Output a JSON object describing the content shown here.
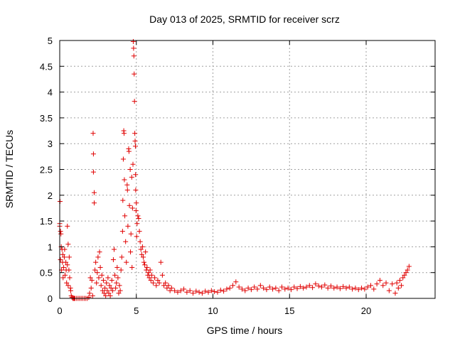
{
  "chart_data": {
    "type": "scatter",
    "title": "Day 013 of 2025, SRMTID for receiver scrz",
    "xlabel": "GPS time / hours",
    "ylabel": "SRMTID / TECUs",
    "xlim": [
      0,
      24.5
    ],
    "ylim": [
      0,
      5
    ],
    "grid": true,
    "marker": "+",
    "x_ticks": [
      "0",
      "5",
      "10",
      "15",
      "20"
    ],
    "y_ticks": [
      "0",
      "0.5",
      "1",
      "1.5",
      "2",
      "2.5",
      "3",
      "3.5",
      "4",
      "4.5",
      "5"
    ],
    "series": [
      {
        "name": "SRMTID",
        "color": "#e00000",
        "points": [
          [
            0.0,
            1.45
          ],
          [
            0.0,
            1.4
          ],
          [
            0.02,
            1.88
          ],
          [
            0.05,
            1.3
          ],
          [
            0.05,
            0.75
          ],
          [
            0.08,
            1.25
          ],
          [
            0.1,
            1.0
          ],
          [
            0.12,
            0.55
          ],
          [
            0.15,
            0.95
          ],
          [
            0.18,
            0.7
          ],
          [
            0.2,
            0.85
          ],
          [
            0.22,
            0.4
          ],
          [
            0.25,
            0.6
          ],
          [
            0.3,
            0.8
          ],
          [
            0.32,
            0.95
          ],
          [
            0.35,
            0.45
          ],
          [
            0.4,
            0.7
          ],
          [
            0.42,
            0.55
          ],
          [
            0.45,
            0.3
          ],
          [
            0.5,
            0.65
          ],
          [
            0.5,
            1.4
          ],
          [
            0.55,
            1.05
          ],
          [
            0.55,
            0.25
          ],
          [
            0.6,
            0.55
          ],
          [
            0.62,
            0.8
          ],
          [
            0.65,
            0.4
          ],
          [
            0.7,
            0.2
          ],
          [
            0.72,
            0.15
          ],
          [
            0.75,
            0.05
          ],
          [
            0.8,
            0.02
          ],
          [
            0.85,
            0.0
          ],
          [
            0.9,
            0.0
          ],
          [
            0.95,
            0.0
          ],
          [
            1.0,
            0.0
          ],
          [
            1.1,
            0.0
          ],
          [
            1.2,
            0.0
          ],
          [
            1.3,
            0.0
          ],
          [
            1.4,
            0.0
          ],
          [
            1.5,
            0.0
          ],
          [
            1.6,
            0.0
          ],
          [
            1.7,
            0.0
          ],
          [
            1.8,
            0.0
          ],
          [
            1.9,
            0.02
          ],
          [
            1.95,
            0.1
          ],
          [
            2.0,
            0.4
          ],
          [
            2.05,
            0.2
          ],
          [
            2.1,
            0.35
          ],
          [
            2.15,
            0.05
          ],
          [
            2.18,
            3.2
          ],
          [
            2.2,
            2.8
          ],
          [
            2.2,
            2.45
          ],
          [
            2.25,
            2.05
          ],
          [
            2.25,
            1.85
          ],
          [
            2.3,
            0.55
          ],
          [
            2.35,
            0.7
          ],
          [
            2.4,
            0.3
          ],
          [
            2.45,
            0.5
          ],
          [
            2.5,
            0.8
          ],
          [
            2.55,
            0.4
          ],
          [
            2.6,
            0.9
          ],
          [
            2.65,
            0.6
          ],
          [
            2.7,
            0.25
          ],
          [
            2.75,
            0.45
          ],
          [
            2.8,
            0.15
          ],
          [
            2.85,
            0.35
          ],
          [
            2.9,
            0.1
          ],
          [
            2.95,
            0.2
          ],
          [
            3.0,
            0.05
          ],
          [
            3.05,
            0.3
          ],
          [
            3.1,
            0.15
          ],
          [
            3.15,
            0.4
          ],
          [
            3.2,
            0.1
          ],
          [
            3.25,
            0.25
          ],
          [
            3.3,
            0.05
          ],
          [
            3.35,
            0.2
          ],
          [
            3.4,
            0.35
          ],
          [
            3.45,
            0.15
          ],
          [
            3.5,
            0.75
          ],
          [
            3.55,
            0.95
          ],
          [
            3.6,
            0.45
          ],
          [
            3.65,
            0.2
          ],
          [
            3.7,
            0.3
          ],
          [
            3.75,
            0.6
          ],
          [
            3.8,
            0.4
          ],
          [
            3.85,
            0.1
          ],
          [
            3.9,
            0.25
          ],
          [
            3.95,
            0.15
          ],
          [
            4.0,
            0.55
          ],
          [
            4.05,
            0.8
          ],
          [
            4.1,
            1.3
          ],
          [
            4.12,
            1.9
          ],
          [
            4.15,
            2.7
          ],
          [
            4.18,
            3.25
          ],
          [
            4.2,
            3.2
          ],
          [
            4.22,
            2.3
          ],
          [
            4.25,
            1.6
          ],
          [
            4.3,
            1.1
          ],
          [
            4.35,
            0.7
          ],
          [
            4.4,
            2.2
          ],
          [
            4.42,
            2.1
          ],
          [
            4.45,
            1.4
          ],
          [
            4.5,
            2.9
          ],
          [
            4.52,
            2.85
          ],
          [
            4.55,
            1.8
          ],
          [
            4.6,
            2.5
          ],
          [
            4.62,
            0.9
          ],
          [
            4.65,
            1.25
          ],
          [
            4.7,
            2.35
          ],
          [
            4.72,
            0.6
          ],
          [
            4.75,
            1.75
          ],
          [
            4.78,
            2.6
          ],
          [
            4.8,
            4.98
          ],
          [
            4.82,
            4.85
          ],
          [
            4.84,
            4.7
          ],
          [
            4.86,
            4.35
          ],
          [
            4.88,
            3.82
          ],
          [
            4.9,
            3.2
          ],
          [
            4.92,
            3.05
          ],
          [
            4.94,
            2.95
          ],
          [
            4.95,
            2.4
          ],
          [
            4.96,
            2.1
          ],
          [
            4.98,
            1.7
          ],
          [
            5.0,
            1.85
          ],
          [
            5.02,
            1.2
          ],
          [
            5.05,
            1.45
          ],
          [
            5.1,
            1.6
          ],
          [
            5.15,
            1.55
          ],
          [
            5.2,
            1.3
          ],
          [
            5.25,
            1.1
          ],
          [
            5.3,
            0.95
          ],
          [
            5.35,
            0.85
          ],
          [
            5.4,
            1.0
          ],
          [
            5.45,
            0.8
          ],
          [
            5.5,
            0.7
          ],
          [
            5.55,
            0.65
          ],
          [
            5.6,
            0.9
          ],
          [
            5.65,
            0.55
          ],
          [
            5.7,
            0.6
          ],
          [
            5.75,
            0.45
          ],
          [
            5.8,
            0.5
          ],
          [
            5.85,
            0.4
          ],
          [
            5.9,
            0.55
          ],
          [
            5.95,
            0.35
          ],
          [
            6.0,
            0.45
          ],
          [
            6.1,
            0.3
          ],
          [
            6.2,
            0.4
          ],
          [
            6.3,
            0.25
          ],
          [
            6.4,
            0.35
          ],
          [
            6.5,
            0.3
          ],
          [
            6.6,
            0.7
          ],
          [
            6.7,
            0.45
          ],
          [
            6.8,
            0.25
          ],
          [
            6.9,
            0.3
          ],
          [
            7.0,
            0.2
          ],
          [
            7.1,
            0.25
          ],
          [
            7.2,
            0.15
          ],
          [
            7.3,
            0.2
          ],
          [
            7.5,
            0.15
          ],
          [
            7.7,
            0.12
          ],
          [
            7.9,
            0.15
          ],
          [
            8.1,
            0.18
          ],
          [
            8.3,
            0.12
          ],
          [
            8.5,
            0.15
          ],
          [
            8.7,
            0.1
          ],
          [
            8.9,
            0.14
          ],
          [
            9.1,
            0.12
          ],
          [
            9.3,
            0.1
          ],
          [
            9.5,
            0.14
          ],
          [
            9.7,
            0.12
          ],
          [
            9.9,
            0.15
          ],
          [
            10.1,
            0.13
          ],
          [
            10.3,
            0.12
          ],
          [
            10.5,
            0.16
          ],
          [
            10.7,
            0.14
          ],
          [
            10.9,
            0.18
          ],
          [
            11.1,
            0.2
          ],
          [
            11.3,
            0.25
          ],
          [
            11.5,
            0.32
          ],
          [
            11.7,
            0.22
          ],
          [
            11.9,
            0.18
          ],
          [
            12.1,
            0.15
          ],
          [
            12.3,
            0.2
          ],
          [
            12.5,
            0.17
          ],
          [
            12.7,
            0.22
          ],
          [
            12.9,
            0.18
          ],
          [
            13.1,
            0.25
          ],
          [
            13.3,
            0.2
          ],
          [
            13.5,
            0.17
          ],
          [
            13.7,
            0.22
          ],
          [
            13.9,
            0.18
          ],
          [
            14.1,
            0.2
          ],
          [
            14.3,
            0.15
          ],
          [
            14.5,
            0.22
          ],
          [
            14.7,
            0.18
          ],
          [
            14.9,
            0.2
          ],
          [
            15.1,
            0.17
          ],
          [
            15.3,
            0.22
          ],
          [
            15.5,
            0.19
          ],
          [
            15.7,
            0.23
          ],
          [
            15.9,
            0.2
          ],
          [
            16.1,
            0.22
          ],
          [
            16.3,
            0.25
          ],
          [
            16.5,
            0.21
          ],
          [
            16.7,
            0.28
          ],
          [
            16.9,
            0.24
          ],
          [
            17.1,
            0.22
          ],
          [
            17.3,
            0.26
          ],
          [
            17.5,
            0.2
          ],
          [
            17.7,
            0.24
          ],
          [
            17.9,
            0.2
          ],
          [
            18.1,
            0.22
          ],
          [
            18.3,
            0.19
          ],
          [
            18.5,
            0.23
          ],
          [
            18.7,
            0.2
          ],
          [
            18.9,
            0.22
          ],
          [
            19.1,
            0.18
          ],
          [
            19.3,
            0.2
          ],
          [
            19.5,
            0.17
          ],
          [
            19.7,
            0.2
          ],
          [
            19.9,
            0.18
          ],
          [
            20.1,
            0.22
          ],
          [
            20.3,
            0.25
          ],
          [
            20.5,
            0.18
          ],
          [
            20.7,
            0.28
          ],
          [
            20.9,
            0.35
          ],
          [
            21.1,
            0.25
          ],
          [
            21.3,
            0.3
          ],
          [
            21.5,
            0.15
          ],
          [
            21.7,
            0.28
          ],
          [
            21.9,
            0.1
          ],
          [
            22.0,
            0.3
          ],
          [
            22.1,
            0.2
          ],
          [
            22.2,
            0.35
          ],
          [
            22.3,
            0.25
          ],
          [
            22.4,
            0.4
          ],
          [
            22.5,
            0.45
          ],
          [
            22.6,
            0.5
          ],
          [
            22.7,
            0.55
          ],
          [
            22.8,
            0.62
          ]
        ]
      }
    ]
  }
}
